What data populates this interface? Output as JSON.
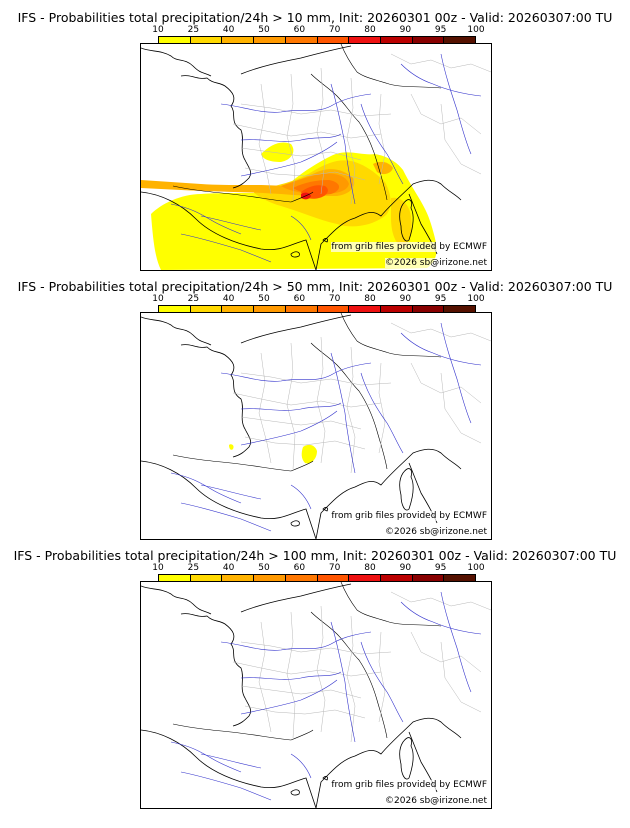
{
  "colorbar": {
    "ticks": [
      "10",
      "25",
      "40",
      "50",
      "60",
      "70",
      "80",
      "90",
      "95",
      "100"
    ],
    "colors": [
      "#ffff00",
      "#ffd900",
      "#ffb300",
      "#ff9900",
      "#ff7700",
      "#ff5500",
      "#ee1111",
      "#bb0000",
      "#880000",
      "#551100"
    ]
  },
  "panels": [
    {
      "title": "IFS - Probabilities total precipitation/24h > 10 mm, Init: 20260301 00z - Valid: 20260307:00 TU",
      "source": "from grib files provided by ECMWF",
      "copyright": "©2026 sb@irizone.net",
      "threshold": "10 mm"
    },
    {
      "title": "IFS - Probabilities total precipitation/24h > 50 mm, Init: 20260301 00z - Valid: 20260307:00 TU",
      "source": "from grib files provided by ECMWF",
      "copyright": "©2026 sb@irizone.net",
      "threshold": "50 mm"
    },
    {
      "title": "IFS - Probabilities total precipitation/24h > 100 mm, Init: 20260301 00z - Valid: 20260307:00 TU",
      "source": "from grib files provided by ECMWF",
      "copyright": "©2026 sb@irizone.net",
      "threshold": "100 mm"
    }
  ]
}
